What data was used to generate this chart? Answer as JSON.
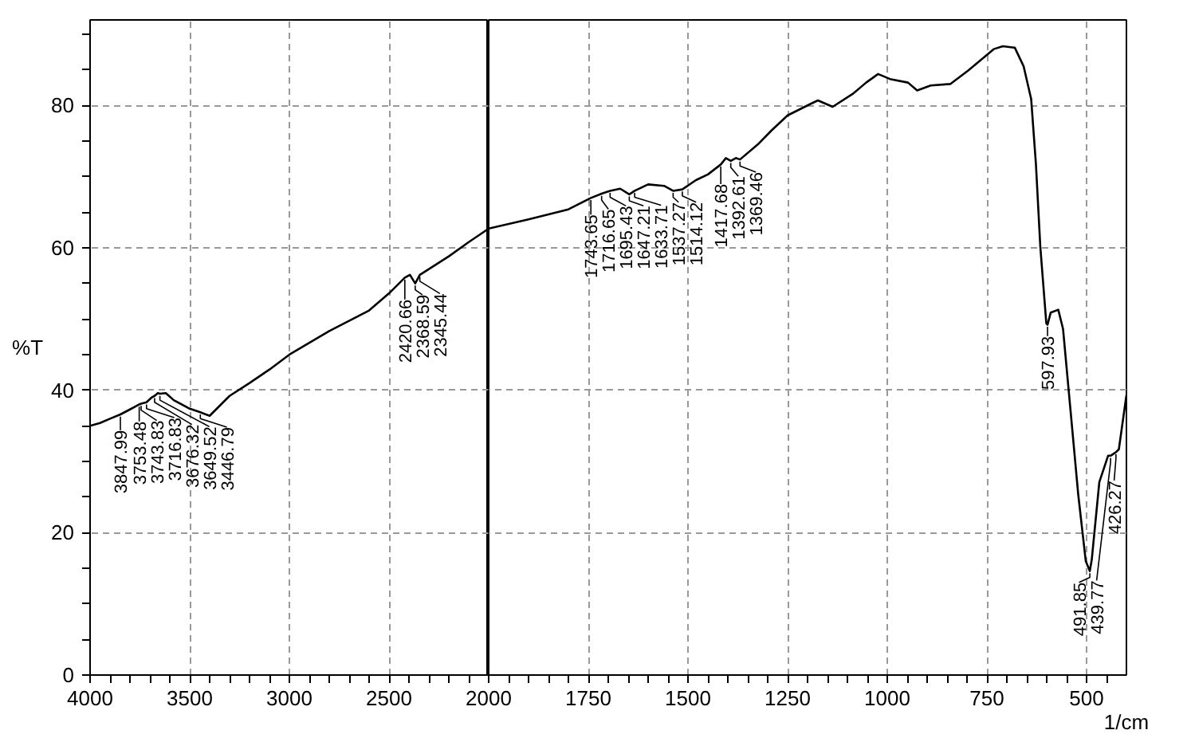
{
  "chart_data": [
    {
      "type": "line",
      "ylabel": "%T",
      "x": [
        4000,
        3950,
        3900,
        3847.99,
        3800,
        3753.48,
        3743.83,
        3716.83,
        3690,
        3676.32,
        3660,
        3649.52,
        3620,
        3580,
        3500,
        3446.79,
        3400,
        3350,
        3300,
        3200,
        3100,
        3000,
        2800,
        2600,
        2500,
        2420.66,
        2395,
        2368.59,
        2345.44,
        2300,
        2200,
        2100,
        2000
      ],
      "series": [
        {
          "color": "#000000",
          "values": [
            35.0,
            35.4,
            36.0,
            36.6,
            37.3,
            38.0,
            38.1,
            38.3,
            39.0,
            39.2,
            39.6,
            39.5,
            39.6,
            38.6,
            37.4,
            36.9,
            36.4,
            37.8,
            39.2,
            41.0,
            42.9,
            45.0,
            48.3,
            51.2,
            53.6,
            55.8,
            56.2,
            55.0,
            56.2,
            57.0,
            58.8,
            60.8,
            62.7
          ]
        }
      ],
      "xlim": [
        4000,
        2000
      ],
      "ylim": [
        0,
        92
      ],
      "xticks": [
        4000,
        {
          "value": 3900,
          "label": null
        },
        {
          "value": 3800,
          "label": null
        },
        {
          "value": 3700,
          "label": null
        },
        {
          "value": 3600,
          "label": null
        },
        3500,
        {
          "value": 3400,
          "label": null
        },
        {
          "value": 3300,
          "label": null
        },
        {
          "value": 3200,
          "label": null
        },
        {
          "value": 3100,
          "label": null
        },
        3000,
        {
          "value": 2900,
          "label": null
        },
        {
          "value": 2800,
          "label": null
        },
        {
          "value": 2700,
          "label": null
        },
        {
          "value": 2600,
          "label": null
        },
        2500,
        {
          "value": 2400,
          "label": null
        },
        {
          "value": 2300,
          "label": null
        },
        {
          "value": 2200,
          "label": null
        },
        {
          "value": 2100,
          "label": null
        }
      ],
      "yticks": [
        0,
        {
          "value": 5,
          "label": null
        },
        {
          "value": 10,
          "label": null
        },
        {
          "value": 15,
          "label": null
        },
        20,
        {
          "value": 25,
          "label": null
        },
        {
          "value": 30,
          "label": null
        },
        {
          "value": 35,
          "label": null
        },
        40,
        {
          "value": 45,
          "label": null
        },
        {
          "value": 50,
          "label": null
        },
        {
          "value": 55,
          "label": null
        },
        60,
        {
          "value": 65,
          "label": null
        },
        {
          "value": 70,
          "label": null
        },
        {
          "value": 75,
          "label": null
        },
        80,
        {
          "value": 85,
          "label": null
        },
        {
          "value": 90,
          "label": null
        }
      ],
      "grid": true,
      "annotations": [
        {
          "text": "3847.99",
          "x": 3847.99,
          "y": 36.6
        },
        {
          "text": "3753.48",
          "x": 3753.48,
          "y": 38.0
        },
        {
          "text": "3743.83",
          "x": 3743.83,
          "y": 38.1
        },
        {
          "text": "3716.83",
          "x": 3716.83,
          "y": 38.3
        },
        {
          "text": "3676.32",
          "x": 3676.32,
          "y": 39.2
        },
        {
          "text": "3649.52",
          "x": 3649.52,
          "y": 39.5
        },
        {
          "text": "3446.79",
          "x": 3446.79,
          "y": 36.9
        },
        {
          "text": "2420.66",
          "x": 2420.66,
          "y": 55.8
        },
        {
          "text": "2368.59",
          "x": 2368.59,
          "y": 55.0
        },
        {
          "text": "2345.44",
          "x": 2345.44,
          "y": 56.2
        }
      ]
    },
    {
      "type": "line",
      "xlabel": "1/cm",
      "tick_labels": "x",
      "x": [
        2000,
        1900,
        1800,
        1743.65,
        1716.65,
        1695.43,
        1670,
        1647.21,
        1633.71,
        1600,
        1560,
        1537.27,
        1514.12,
        1480,
        1450,
        1417.68,
        1405,
        1392.61,
        1380,
        1369.46,
        1325,
        1290,
        1250,
        1200,
        1174,
        1137,
        1087,
        1053,
        1023,
        993,
        948,
        925,
        891,
        842,
        797,
        733,
        710,
        680,
        658,
        639,
        627,
        616,
        601,
        597.93,
        590,
        571,
        559,
        540,
        521,
        502,
        491.85,
        487,
        468,
        446,
        439.77,
        426.27,
        419,
        400
      ],
      "series": [
        {
          "color": "#000000",
          "values": [
            62.7,
            64.0,
            65.4,
            67.0,
            67.6,
            68.0,
            68.3,
            67.5,
            68.0,
            68.9,
            68.7,
            68.0,
            68.2,
            69.5,
            70.3,
            71.7,
            72.6,
            72.2,
            72.6,
            72.4,
            74.5,
            76.5,
            78.6,
            80.0,
            80.7,
            79.8,
            81.6,
            83.2,
            84.4,
            83.7,
            83.2,
            82.1,
            82.8,
            83.0,
            84.9,
            87.9,
            88.3,
            88.1,
            85.5,
            80.9,
            71.7,
            60.1,
            49.4,
            49.2,
            50.9,
            51.3,
            48.6,
            37.0,
            25.4,
            16.0,
            14.6,
            16.2,
            27.1,
            30.8,
            30.8,
            31.3,
            31.7,
            39.3
          ]
        }
      ],
      "xlim": [
        2000,
        400
      ],
      "ylim": [
        0,
        92
      ],
      "xticks": [
        2000,
        {
          "value": 1950,
          "label": null
        },
        {
          "value": 1900,
          "label": null
        },
        {
          "value": 1850,
          "label": null
        },
        {
          "value": 1800,
          "label": null
        },
        1750,
        {
          "value": 1700,
          "label": null
        },
        {
          "value": 1650,
          "label": null
        },
        {
          "value": 1600,
          "label": null
        },
        {
          "value": 1550,
          "label": null
        },
        1500,
        {
          "value": 1450,
          "label": null
        },
        {
          "value": 1400,
          "label": null
        },
        {
          "value": 1350,
          "label": null
        },
        {
          "value": 1300,
          "label": null
        },
        1250,
        {
          "value": 1200,
          "label": null
        },
        {
          "value": 1150,
          "label": null
        },
        {
          "value": 1100,
          "label": null
        },
        {
          "value": 1050,
          "label": null
        },
        1000,
        {
          "value": 950,
          "label": null
        },
        {
          "value": 900,
          "label": null
        },
        {
          "value": 850,
          "label": null
        },
        {
          "value": 800,
          "label": null
        },
        750,
        {
          "value": 700,
          "label": null
        },
        {
          "value": 650,
          "label": null
        },
        {
          "value": 600,
          "label": null
        },
        {
          "value": 550,
          "label": null
        },
        500,
        {
          "value": 450,
          "label": null
        }
      ],
      "yticks": [
        0,
        20,
        40,
        60,
        80
      ],
      "grid": true,
      "annotations": [
        {
          "text": "1743.65",
          "x": 1743.65,
          "y": 67.0
        },
        {
          "text": "1716.65",
          "x": 1716.65,
          "y": 67.6
        },
        {
          "text": "1695.43",
          "x": 1695.43,
          "y": 68.0
        },
        {
          "text": "1647.21",
          "x": 1647.21,
          "y": 67.5
        },
        {
          "text": "1633.71",
          "x": 1633.71,
          "y": 68.0
        },
        {
          "text": "1537.27",
          "x": 1537.27,
          "y": 68.0
        },
        {
          "text": "1514.12",
          "x": 1514.12,
          "y": 68.2
        },
        {
          "text": "1417.68",
          "x": 1417.68,
          "y": 71.7
        },
        {
          "text": "1392.61",
          "x": 1392.61,
          "y": 72.2
        },
        {
          "text": "1369.46",
          "x": 1369.46,
          "y": 72.4
        },
        {
          "text": "597.93",
          "x": 597.93,
          "y": 49.2
        },
        {
          "text": "491.85",
          "x": 491.85,
          "y": 14.6
        },
        {
          "text": "439.77",
          "x": 439.77,
          "y": 30.8
        },
        {
          "text": "426.27",
          "x": 426.27,
          "y": 31.3
        }
      ]
    }
  ]
}
